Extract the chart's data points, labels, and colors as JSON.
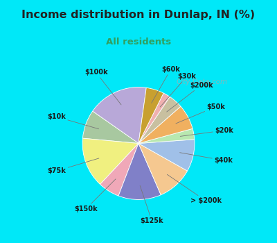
{
  "title": "Income distribution in Dunlap, IN (%)",
  "subtitle": "All residents",
  "labels": [
    "$100k",
    "$10k",
    "$75k",
    "$150k",
    "$125k",
    "> $200k",
    "$40k",
    "$20k",
    "$50k",
    "$200k",
    "$30k",
    "$60k"
  ],
  "values": [
    17,
    8,
    14,
    6,
    12,
    10,
    9,
    3,
    7,
    4,
    2,
    5
  ],
  "colors": [
    "#b8a8d8",
    "#a8c8a0",
    "#f0f080",
    "#f0a8b8",
    "#8080c8",
    "#f5c890",
    "#a0c0e8",
    "#b8e8b0",
    "#f0b060",
    "#c8c0a0",
    "#f0b0b0",
    "#c8a030"
  ],
  "bg_cyan": "#00e8f8",
  "bg_chart": "#ddf0e8",
  "title_color": "#222222",
  "subtitle_color": "#30a060",
  "watermark": "City-Data.com",
  "startangle": 82,
  "label_r": 1.38
}
